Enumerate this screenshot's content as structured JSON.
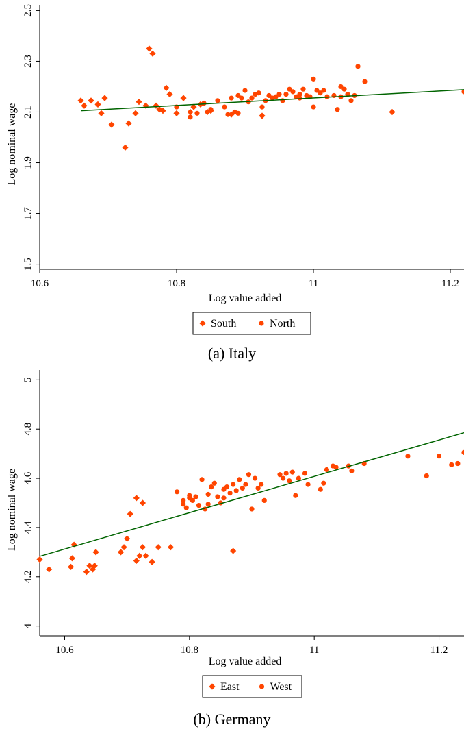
{
  "chart_data": [
    {
      "type": "scatter",
      "caption": "(a) Italy",
      "xlabel": "Log value added",
      "ylabel": "Log nominal wage",
      "xlim": [
        10.6,
        11.22
      ],
      "ylim": [
        1.48,
        2.52
      ],
      "xticks": [
        "10.6",
        "10.8",
        "11",
        "11.2"
      ],
      "yticks": [
        "1.5",
        "1.7",
        "1.9",
        "2.1",
        "2.3",
        "2.5"
      ],
      "grid": false,
      "legend": {
        "position": "bottom-center",
        "entries": [
          "South",
          "North"
        ]
      },
      "colors": {
        "points": "#ff4500",
        "fit": "#006400"
      },
      "fit_line": {
        "x": [
          10.66,
          11.22
        ],
        "y": [
          2.105,
          2.188
        ]
      },
      "series": [
        {
          "name": "South",
          "marker": "diamond",
          "x": [
            10.66,
            10.665,
            10.675,
            10.685,
            10.69,
            10.695,
            10.705,
            10.725,
            10.73,
            10.74,
            10.745,
            10.755,
            10.76,
            10.765,
            10.77,
            10.775,
            10.78,
            10.785,
            10.79,
            10.8,
            10.81,
            10.82,
            10.825,
            10.835,
            10.845,
            10.85,
            10.88,
            10.925,
            11.115
          ],
          "y": [
            2.145,
            2.125,
            2.145,
            2.13,
            2.095,
            2.155,
            2.05,
            1.96,
            2.055,
            2.095,
            2.14,
            2.125,
            2.35,
            2.33,
            2.125,
            2.11,
            2.105,
            2.195,
            2.17,
            2.095,
            2.155,
            2.1,
            2.12,
            2.13,
            2.1,
            2.105,
            2.09,
            2.085,
            2.1
          ]
        },
        {
          "name": "North",
          "marker": "circle",
          "x": [
            10.8,
            10.82,
            10.83,
            10.84,
            10.85,
            10.86,
            10.87,
            10.875,
            10.88,
            10.885,
            10.89,
            10.895,
            10.9,
            10.905,
            10.91,
            10.915,
            10.92,
            10.925,
            10.93,
            10.935,
            10.94,
            10.945,
            10.95,
            10.955,
            10.96,
            10.965,
            10.97,
            10.975,
            10.98,
            10.985,
            10.99,
            10.995,
            11.0,
            11.005,
            11.01,
            11.015,
            11.02,
            11.03,
            11.035,
            11.04,
            11.045,
            11.05,
            11.055,
            11.06,
            11.065,
            11.075,
            11.22,
            10.89,
            10.98,
            11.0,
            11.04
          ],
          "y": [
            2.12,
            2.08,
            2.095,
            2.135,
            2.11,
            2.145,
            2.12,
            2.09,
            2.155,
            2.1,
            2.165,
            2.155,
            2.185,
            2.14,
            2.155,
            2.17,
            2.175,
            2.12,
            2.145,
            2.165,
            2.155,
            2.16,
            2.17,
            2.145,
            2.17,
            2.19,
            2.18,
            2.16,
            2.17,
            2.19,
            2.165,
            2.16,
            2.23,
            2.185,
            2.175,
            2.185,
            2.16,
            2.165,
            2.11,
            2.2,
            2.19,
            2.17,
            2.145,
            2.165,
            2.28,
            2.22,
            2.18,
            2.095,
            2.155,
            2.12,
            2.16
          ]
        }
      ]
    },
    {
      "type": "scatter",
      "caption": "(b) Germany",
      "xlabel": "Log value added",
      "ylabel": "Log nominal wage",
      "xlim": [
        10.56,
        11.24
      ],
      "ylim": [
        3.96,
        5.04
      ],
      "xticks": [
        "10.6",
        "10.8",
        "11",
        "11.2"
      ],
      "yticks": [
        "4",
        "4.2",
        "4.4",
        "4.6",
        "4.8",
        "5"
      ],
      "grid": false,
      "legend": {
        "position": "bottom-center",
        "entries": [
          "East",
          "West"
        ]
      },
      "colors": {
        "points": "#ff4500",
        "fit": "#006400"
      },
      "fit_line": {
        "x": [
          10.56,
          11.24
        ],
        "y": [
          4.283,
          4.785
        ]
      },
      "series": [
        {
          "name": "East",
          "marker": "diamond",
          "x": [
            10.56,
            10.575,
            10.61,
            10.615,
            10.635,
            10.64,
            10.645,
            10.648,
            10.65,
            10.69,
            10.695,
            10.7,
            10.715,
            10.72,
            10.725,
            10.73,
            10.74,
            10.75,
            10.77,
            10.87,
            10.705,
            10.715,
            10.725,
            10.612
          ],
          "y": [
            4.27,
            4.23,
            4.24,
            4.33,
            4.22,
            4.245,
            4.23,
            4.245,
            4.3,
            4.3,
            4.32,
            4.355,
            4.265,
            4.285,
            4.32,
            4.285,
            4.26,
            4.32,
            4.32,
            4.305,
            4.455,
            4.52,
            4.5,
            4.275
          ]
        },
        {
          "name": "West",
          "marker": "circle",
          "x": [
            10.78,
            10.79,
            10.795,
            10.8,
            10.805,
            10.81,
            10.815,
            10.82,
            10.825,
            10.83,
            10.835,
            10.84,
            10.845,
            10.85,
            10.855,
            10.86,
            10.865,
            10.87,
            10.875,
            10.88,
            10.885,
            10.89,
            10.895,
            10.9,
            10.905,
            10.91,
            10.915,
            10.92,
            10.945,
            10.95,
            10.955,
            10.96,
            10.965,
            10.97,
            10.975,
            10.985,
            10.99,
            11.01,
            11.015,
            11.02,
            11.03,
            11.035,
            11.055,
            11.06,
            11.08,
            11.15,
            11.18,
            11.2,
            11.22,
            11.23,
            11.24,
            10.79,
            10.8,
            10.83,
            10.855
          ],
          "y": [
            4.545,
            4.51,
            4.48,
            4.53,
            4.51,
            4.525,
            4.49,
            4.595,
            4.475,
            4.535,
            4.565,
            4.58,
            4.525,
            4.5,
            4.555,
            4.565,
            4.54,
            4.575,
            4.55,
            4.595,
            4.56,
            4.575,
            4.615,
            4.475,
            4.6,
            4.56,
            4.575,
            4.51,
            4.615,
            4.6,
            4.62,
            4.59,
            4.625,
            4.53,
            4.6,
            4.62,
            4.575,
            4.555,
            4.58,
            4.635,
            4.65,
            4.645,
            4.65,
            4.63,
            4.66,
            4.69,
            4.61,
            4.69,
            4.655,
            4.66,
            4.705,
            4.495,
            4.52,
            4.495,
            4.52
          ]
        }
      ]
    }
  ]
}
